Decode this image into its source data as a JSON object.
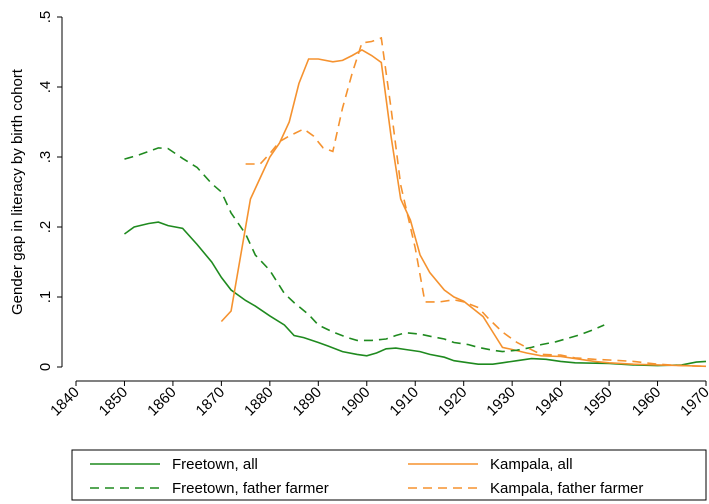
{
  "chart_data": {
    "type": "line",
    "y_label": "Gender gap in literacy by birth cohort",
    "xlim": [
      1840,
      1970
    ],
    "xticks": [
      1840,
      1850,
      1860,
      1870,
      1880,
      1890,
      1900,
      1910,
      1920,
      1930,
      1940,
      1950,
      1960,
      1970
    ],
    "ylim": [
      0,
      0.5
    ],
    "yticks": [
      0,
      {
        "value": 0.1,
        "label": ".1"
      },
      {
        "value": 0.2,
        "label": ".2"
      },
      {
        "value": 0.3,
        "label": ".3"
      },
      {
        "value": 0.4,
        "label": ".4"
      },
      {
        "value": 0.5,
        "label": ".5"
      }
    ],
    "grid": false,
    "legend": "bottom",
    "series": [
      {
        "name": "Freetown, all",
        "color": "#1f8a1f",
        "dash": "solid",
        "x": [
          1850,
          1852,
          1855,
          1857,
          1859,
          1862,
          1865,
          1868,
          1870,
          1872,
          1875,
          1877,
          1880,
          1883,
          1885,
          1887,
          1890,
          1892,
          1895,
          1898,
          1900,
          1902,
          1904,
          1906,
          1908,
          1911,
          1913,
          1916,
          1918,
          1921,
          1923,
          1926,
          1928,
          1931,
          1934,
          1937,
          1940,
          1943,
          1950,
          1955,
          1960,
          1965,
          1968,
          1970
        ],
        "values": [
          0.19,
          0.2,
          0.205,
          0.207,
          0.202,
          0.198,
          0.175,
          0.15,
          0.128,
          0.11,
          0.095,
          0.087,
          0.073,
          0.06,
          0.045,
          0.042,
          0.035,
          0.03,
          0.022,
          0.018,
          0.016,
          0.02,
          0.026,
          0.027,
          0.025,
          0.022,
          0.018,
          0.014,
          0.009,
          0.006,
          0.004,
          0.004,
          0.006,
          0.009,
          0.012,
          0.011,
          0.008,
          0.006,
          0.005,
          0.003,
          0.002,
          0.003,
          0.007,
          0.008
        ]
      },
      {
        "name": "Kampala, all",
        "color": "#f5922f",
        "dash": "solid",
        "x": [
          1870,
          1872,
          1874,
          1876,
          1878,
          1880,
          1882,
          1884,
          1886,
          1888,
          1890,
          1893,
          1895,
          1897,
          1899,
          1901,
          1903,
          1905,
          1907,
          1909,
          1911,
          1913,
          1916,
          1918,
          1920,
          1922,
          1924,
          1926,
          1928,
          1930,
          1933,
          1936,
          1940,
          1943,
          1947,
          1950,
          1955,
          1960,
          1965,
          1970
        ],
        "values": [
          0.065,
          0.08,
          0.16,
          0.24,
          0.27,
          0.3,
          0.32,
          0.35,
          0.405,
          0.44,
          0.44,
          0.436,
          0.438,
          0.445,
          0.453,
          0.445,
          0.435,
          0.33,
          0.24,
          0.21,
          0.16,
          0.135,
          0.11,
          0.1,
          0.094,
          0.083,
          0.072,
          0.05,
          0.028,
          0.025,
          0.02,
          0.016,
          0.015,
          0.012,
          0.008,
          0.006,
          0.004,
          0.003,
          0.002,
          0.001
        ]
      },
      {
        "name": "Freetown, father farmer",
        "color": "#1f8a1f",
        "dash": "dashed",
        "x": [
          1850,
          1853,
          1855,
          1857,
          1859,
          1862,
          1865,
          1868,
          1870,
          1872,
          1875,
          1877,
          1880,
          1883,
          1885,
          1888,
          1890,
          1893,
          1896,
          1898,
          1901,
          1904,
          1906,
          1908,
          1911,
          1913,
          1916,
          1918,
          1921,
          1923,
          1926,
          1928,
          1931,
          1934,
          1936,
          1939,
          1941,
          1944,
          1947,
          1949
        ],
        "values": [
          0.297,
          0.303,
          0.308,
          0.313,
          0.312,
          0.298,
          0.285,
          0.262,
          0.25,
          0.22,
          0.19,
          0.16,
          0.138,
          0.105,
          0.092,
          0.075,
          0.06,
          0.05,
          0.042,
          0.038,
          0.038,
          0.04,
          0.045,
          0.049,
          0.047,
          0.044,
          0.04,
          0.035,
          0.032,
          0.028,
          0.024,
          0.022,
          0.024,
          0.028,
          0.032,
          0.036,
          0.04,
          0.046,
          0.054,
          0.06
        ]
      },
      {
        "name": "Kampala, father farmer",
        "color": "#f5922f",
        "dash": "dashed",
        "x": [
          1875,
          1878,
          1880,
          1882,
          1884,
          1887,
          1889,
          1891,
          1893,
          1895,
          1897,
          1899,
          1901,
          1903,
          1905,
          1907,
          1910,
          1912,
          1915,
          1918,
          1920,
          1923,
          1925,
          1928,
          1931,
          1933,
          1936,
          1940,
          1943,
          1947,
          1950,
          1955,
          1960,
          1965,
          1970
        ],
        "values": [
          0.29,
          0.29,
          0.305,
          0.322,
          0.33,
          0.34,
          0.33,
          0.313,
          0.308,
          0.37,
          0.42,
          0.463,
          0.465,
          0.47,
          0.37,
          0.26,
          0.17,
          0.093,
          0.093,
          0.096,
          0.093,
          0.085,
          0.07,
          0.05,
          0.035,
          0.028,
          0.018,
          0.017,
          0.013,
          0.011,
          0.01,
          0.008,
          0.004,
          0.002,
          0.001
        ]
      }
    ]
  }
}
